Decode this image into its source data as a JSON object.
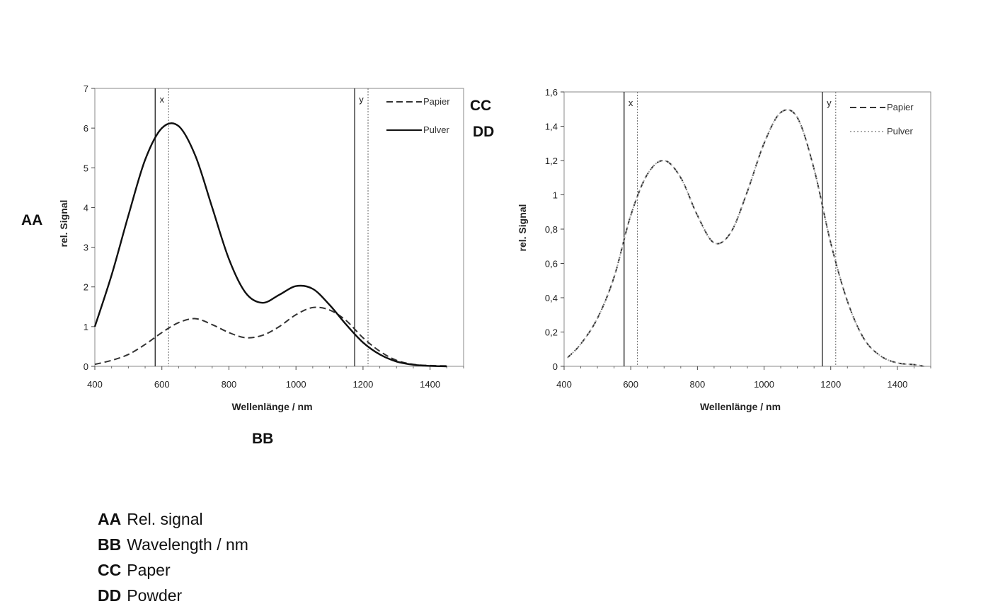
{
  "labels": {
    "aa": "AA",
    "bb": "BB",
    "cc": "CC",
    "dd": "DD"
  },
  "key": [
    {
      "code": "AA",
      "text": "Rel. signal"
    },
    {
      "code": "BB",
      "text": "Wavelength / nm"
    },
    {
      "code": "CC",
      "text": "Paper"
    },
    {
      "code": "DD",
      "text": "Powder"
    }
  ],
  "chart_data": [
    {
      "type": "line",
      "xlabel": "Wellenlänge / nm",
      "ylabel": "rel. Signal",
      "xlim": [
        400,
        1500
      ],
      "ylim": [
        0,
        7
      ],
      "xticks": [
        400,
        600,
        800,
        1000,
        1200,
        1400
      ],
      "xtick_labels": [
        "400",
        "600",
        "800",
        "1000",
        "1200",
        "1400"
      ],
      "yticks": [
        0,
        1,
        2,
        3,
        4,
        5,
        6,
        7
      ],
      "ytick_labels": [
        "0",
        "1",
        "2",
        "3",
        "4",
        "5",
        "6",
        "7"
      ],
      "grid": false,
      "legend_position": "top-right",
      "bands": [
        {
          "label": "x",
          "from": 580,
          "to": 620
        },
        {
          "label": "y",
          "from": 1175,
          "to": 1215
        }
      ],
      "series": [
        {
          "name": "Papier",
          "style": "dashed",
          "color": "#333333",
          "x": [
            400,
            450,
            500,
            550,
            600,
            650,
            700,
            750,
            800,
            850,
            900,
            950,
            1000,
            1050,
            1100,
            1150,
            1200,
            1250,
            1300,
            1350,
            1400,
            1450
          ],
          "y": [
            0.05,
            0.15,
            0.3,
            0.55,
            0.85,
            1.1,
            1.2,
            1.05,
            0.85,
            0.72,
            0.78,
            1.0,
            1.3,
            1.48,
            1.42,
            1.15,
            0.72,
            0.38,
            0.15,
            0.05,
            0.02,
            0.01
          ]
        },
        {
          "name": "Pulver",
          "style": "solid",
          "color": "#111111",
          "x": [
            400,
            450,
            500,
            550,
            600,
            650,
            700,
            750,
            800,
            850,
            900,
            950,
            1000,
            1050,
            1100,
            1150,
            1200,
            1250,
            1300,
            1350,
            1400,
            1450
          ],
          "y": [
            1.0,
            2.3,
            3.8,
            5.2,
            6.0,
            6.05,
            5.3,
            4.0,
            2.7,
            1.85,
            1.6,
            1.8,
            2.02,
            1.95,
            1.55,
            1.05,
            0.6,
            0.3,
            0.12,
            0.04,
            0.01,
            0.0
          ]
        }
      ]
    },
    {
      "type": "line",
      "xlabel": "Wellenlänge / nm",
      "ylabel": "rel. Signal",
      "xlim": [
        400,
        1500
      ],
      "ylim": [
        0,
        1.6
      ],
      "xticks": [
        400,
        600,
        800,
        1000,
        1200,
        1400
      ],
      "xtick_labels": [
        "400",
        "600",
        "800",
        "1000",
        "1200",
        "1400"
      ],
      "yticks": [
        0,
        0.2,
        0.4,
        0.6,
        0.8,
        1,
        1.2,
        1.4,
        1.6
      ],
      "ytick_labels": [
        "0",
        "0,2",
        "0,4",
        "0,6",
        "0,8",
        "1",
        "1,2",
        "1,4",
        "1,6"
      ],
      "grid": false,
      "legend_position": "top-right",
      "bands": [
        {
          "label": "x",
          "from": 580,
          "to": 620
        },
        {
          "label": "y",
          "from": 1175,
          "to": 1215
        }
      ],
      "series": [
        {
          "name": "Papier",
          "style": "dashed",
          "color": "#333333",
          "x": [
            410,
            450,
            500,
            550,
            600,
            650,
            700,
            750,
            800,
            850,
            900,
            950,
            1000,
            1050,
            1100,
            1150,
            1200,
            1250,
            1300,
            1350,
            1400,
            1450,
            1480
          ],
          "y": [
            0.05,
            0.13,
            0.28,
            0.52,
            0.88,
            1.12,
            1.2,
            1.1,
            0.88,
            0.72,
            0.78,
            1.02,
            1.3,
            1.48,
            1.45,
            1.15,
            0.72,
            0.38,
            0.16,
            0.06,
            0.02,
            0.01,
            0.0
          ]
        },
        {
          "name": "Pulver",
          "style": "dotted",
          "color": "#aaaaaa",
          "x": [
            410,
            450,
            500,
            550,
            600,
            650,
            700,
            750,
            800,
            850,
            900,
            950,
            1000,
            1050,
            1100,
            1150,
            1200,
            1250,
            1300,
            1350,
            1400,
            1450,
            1480
          ],
          "y": [
            0.05,
            0.13,
            0.28,
            0.52,
            0.88,
            1.12,
            1.2,
            1.1,
            0.88,
            0.72,
            0.78,
            1.02,
            1.3,
            1.48,
            1.45,
            1.15,
            0.72,
            0.38,
            0.16,
            0.06,
            0.02,
            0.01,
            0.0
          ]
        }
      ]
    }
  ]
}
